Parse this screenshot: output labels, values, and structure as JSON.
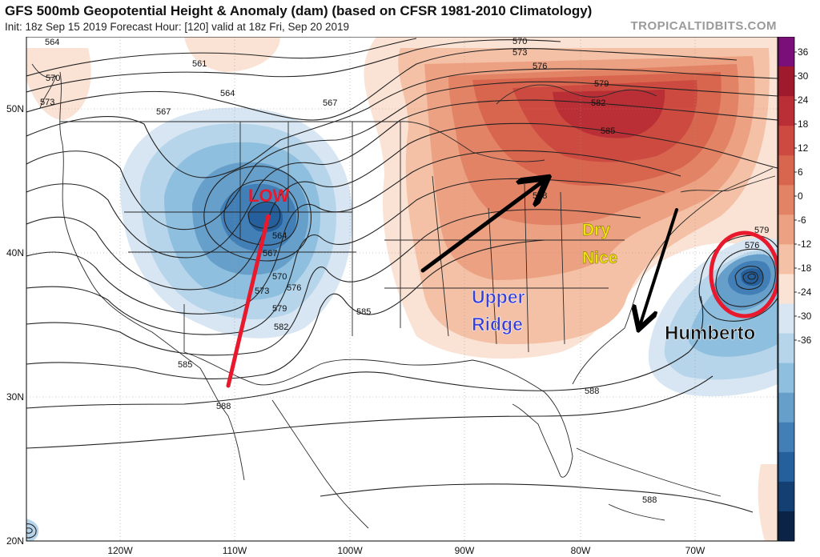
{
  "header": {
    "title": "GFS 500mb Geopotential Height & Anomaly (dam) (based on CFSR 1981-2010 Climatology)",
    "subtitle": "Init: 18z Sep 15 2019   Forecast Hour: [120]   valid at 18z Fri, Sep 20 2019",
    "credit": "TROPICALTIDBITS.COM"
  },
  "axes": {
    "lat_labels": [
      "50N",
      "40N",
      "30N",
      "20N"
    ],
    "lon_labels": [
      "120W",
      "110W",
      "100W",
      "90W",
      "80W",
      "70W"
    ]
  },
  "colorbar": {
    "ticks": [
      "36",
      "30",
      "24",
      "18",
      "12",
      "6",
      "0",
      "-6",
      "-12",
      "-18",
      "-24",
      "-30",
      "-36"
    ],
    "colors_top_to_bottom": [
      "#7a0f7a",
      "#9e1a2c",
      "#b92f35",
      "#cc4a3f",
      "#d8664f",
      "#e38366",
      "#eda183",
      "#f4c1a6",
      "#fae2d4",
      "#d7e6f2",
      "#b6d5ea",
      "#8fbfdf",
      "#679fcb",
      "#417fb6",
      "#25609d",
      "#143f73",
      "#0b2347"
    ]
  },
  "contours": [
    "564",
    "561",
    "564",
    "567",
    "570",
    "573",
    "567",
    "570",
    "573",
    "576",
    "579",
    "582",
    "585",
    "588",
    "564",
    "567",
    "570",
    "573",
    "576",
    "579",
    "582",
    "585",
    "585",
    "588",
    "588",
    "588",
    "579",
    "576"
  ],
  "annotations": {
    "low": "LOW",
    "dry": "Dry",
    "nice": "Nice",
    "upper": "Upper",
    "ridge": "Ridge",
    "humberto": "Humberto"
  },
  "annotation_colors": {
    "low": "#e8192c",
    "dry_nice": "#f2e20c",
    "upper_ridge": "#3a3fd6",
    "humberto": "#111111",
    "arrows": "#000000",
    "trough_axis": "#e8192c",
    "circle": "#e8192c"
  }
}
